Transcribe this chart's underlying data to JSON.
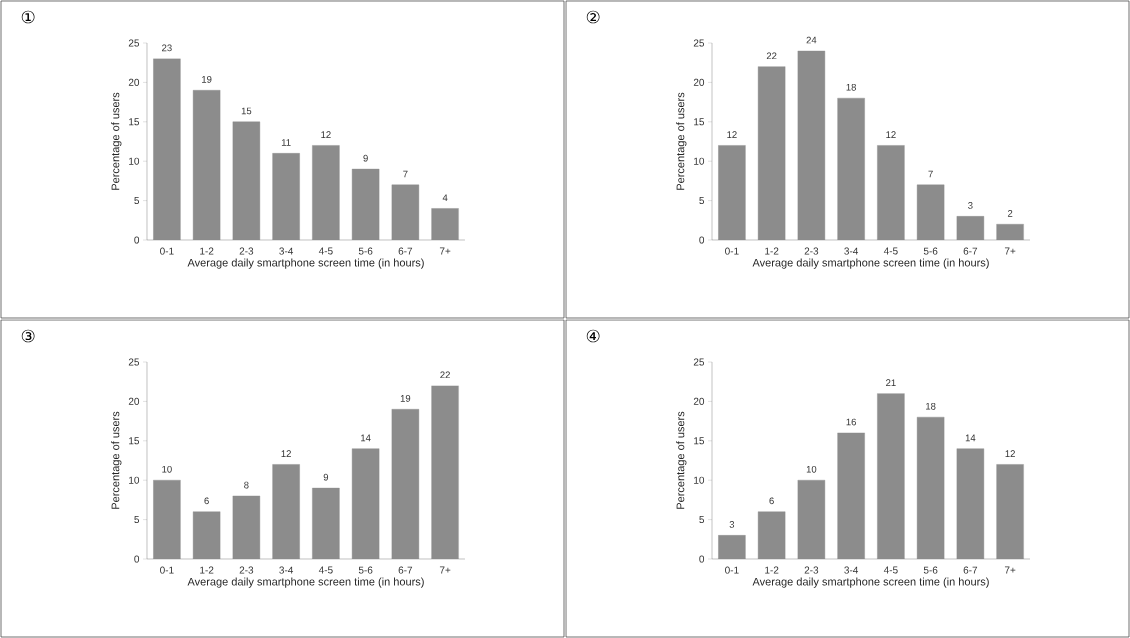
{
  "chart_data": [
    {
      "type": "bar",
      "title": "①",
      "categories": [
        "0-1",
        "1-2",
        "2-3",
        "3-4",
        "4-5",
        "5-6",
        "6-7",
        "7+"
      ],
      "values": [
        23,
        19,
        15,
        11,
        12,
        9,
        7,
        4
      ],
      "color": "#8c8c8c",
      "xlabel": "Average daily smartphone screen time (in hours)",
      "ylabel": "Percentage of users",
      "ylim": [
        0,
        25
      ],
      "yticks": [
        0,
        5,
        10,
        15,
        20,
        25
      ],
      "data_labels": true
    },
    {
      "type": "bar",
      "title": "②",
      "categories": [
        "0-1",
        "1-2",
        "2-3",
        "3-4",
        "4-5",
        "5-6",
        "6-7",
        "7+"
      ],
      "values": [
        12,
        22,
        24,
        18,
        12,
        7,
        3,
        2
      ],
      "color": "#8c8c8c",
      "xlabel": "Average daily smartphone screen time (in hours)",
      "ylabel": "Percentage of users",
      "ylim": [
        0,
        25
      ],
      "yticks": [
        0,
        5,
        10,
        15,
        20,
        25
      ],
      "data_labels": true
    },
    {
      "type": "bar",
      "title": "③",
      "categories": [
        "0-1",
        "1-2",
        "2-3",
        "3-4",
        "4-5",
        "5-6",
        "6-7",
        "7+"
      ],
      "values": [
        10,
        6,
        8,
        12,
        9,
        14,
        19,
        22
      ],
      "color": "#8c8c8c",
      "xlabel": "Average daily smartphone screen time (in hours)",
      "ylabel": "Percentage of users",
      "ylim": [
        0,
        25
      ],
      "yticks": [
        0,
        5,
        10,
        15,
        20,
        25
      ],
      "data_labels": true
    },
    {
      "type": "bar",
      "title": "④",
      "categories": [
        "0-1",
        "1-2",
        "2-3",
        "3-4",
        "4-5",
        "5-6",
        "6-7",
        "7+"
      ],
      "values": [
        3,
        6,
        10,
        16,
        21,
        18,
        14,
        12
      ],
      "color": "#8c8c8c",
      "xlabel": "Average daily smartphone screen time (in hours)",
      "ylabel": "Percentage of users",
      "ylim": [
        0,
        25
      ],
      "yticks": [
        0,
        5,
        10,
        15,
        20,
        25
      ],
      "data_labels": true
    }
  ]
}
